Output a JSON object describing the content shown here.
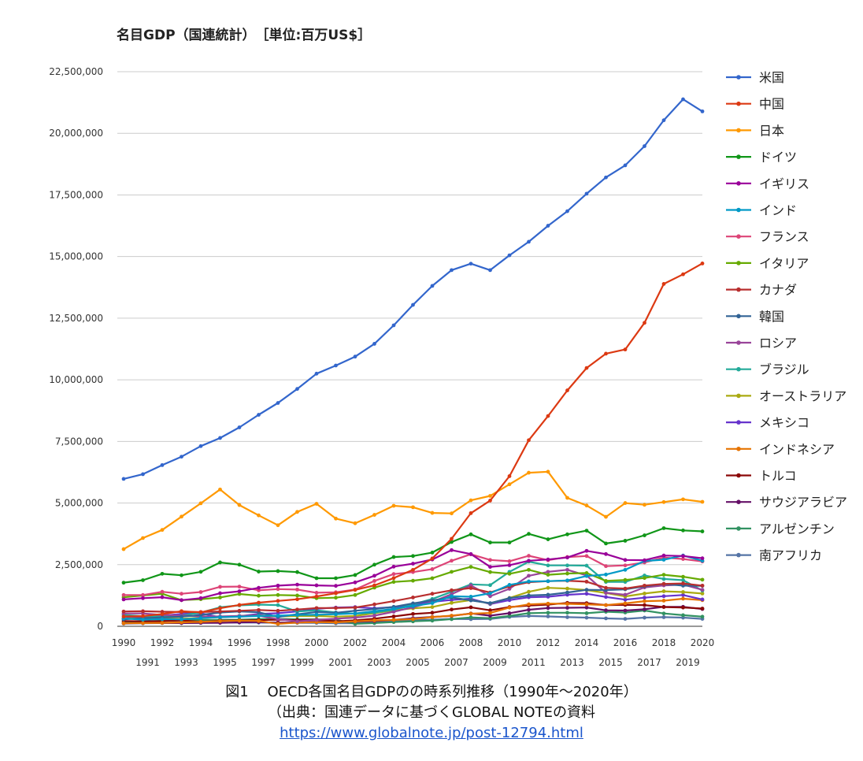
{
  "chart_data": {
    "type": "line",
    "title": "名目GDP（国連統計）　［単位:百万US$］",
    "ylim": [
      0,
      22500000
    ],
    "y_ticks": [
      "0",
      "2,500,000",
      "5,000,000",
      "7,500,000",
      "10,000,000",
      "12,500,000",
      "15,000,000",
      "17,500,000",
      "20,000,000",
      "22,500,000"
    ],
    "y_tick_values": [
      0,
      2500000,
      5000000,
      7500000,
      10000000,
      12500000,
      15000000,
      17500000,
      20000000,
      22500000
    ],
    "x": [
      1990,
      1991,
      1992,
      1993,
      1994,
      1995,
      1996,
      1997,
      1998,
      1999,
      2000,
      2001,
      2002,
      2003,
      2004,
      2005,
      2006,
      2007,
      2008,
      2009,
      2010,
      2011,
      2012,
      2013,
      2014,
      2015,
      2016,
      2017,
      2018,
      2019,
      2020
    ],
    "x_tick_labels": [
      "1990",
      "1991",
      "1992",
      "1993",
      "1994",
      "1995",
      "1996",
      "1997",
      "1998",
      "1999",
      "2000",
      "2001",
      "2002",
      "2003",
      "2004",
      "2005",
      "2006",
      "2007",
      "2008",
      "2009",
      "2010",
      "2011",
      "2012",
      "2013",
      "2014",
      "2015",
      "2016",
      "2017",
      "2018",
      "2019",
      "2020"
    ],
    "grid": true,
    "legend_position": "right",
    "series": [
      {
        "name": "米国",
        "color": "#3366cc",
        "values": [
          5980000,
          6170000,
          6540000,
          6880000,
          7310000,
          7640000,
          8070000,
          8580000,
          9060000,
          9630000,
          10250000,
          10580000,
          10940000,
          11460000,
          12210000,
          13040000,
          13810000,
          14450000,
          14710000,
          14450000,
          15050000,
          15600000,
          16250000,
          16840000,
          17550000,
          18210000,
          18700000,
          19480000,
          20530000,
          21380000,
          20890000
        ]
      },
      {
        "name": "中国",
        "color": "#dc3912",
        "values": [
          395000,
          415000,
          495000,
          615000,
          565000,
          735000,
          865000,
          960000,
          1030000,
          1095000,
          1210000,
          1340000,
          1475000,
          1660000,
          1955000,
          2290000,
          2750000,
          3550000,
          4590000,
          5100000,
          6090000,
          7550000,
          8530000,
          9570000,
          10480000,
          11060000,
          11230000,
          12310000,
          13890000,
          14280000,
          14720000
        ]
      },
      {
        "name": "日本",
        "color": "#ff9900",
        "values": [
          3130000,
          3580000,
          3910000,
          4450000,
          4990000,
          5550000,
          4920000,
          4500000,
          4100000,
          4640000,
          4970000,
          4370000,
          4180000,
          4520000,
          4890000,
          4830000,
          4600000,
          4580000,
          5110000,
          5290000,
          5760000,
          6230000,
          6270000,
          5210000,
          4900000,
          4440000,
          5000000,
          4930000,
          5040000,
          5150000,
          5050000
        ]
      },
      {
        "name": "ドイツ",
        "color": "#109618",
        "values": [
          1770000,
          1870000,
          2130000,
          2070000,
          2210000,
          2590000,
          2500000,
          2220000,
          2240000,
          2200000,
          1950000,
          1950000,
          2080000,
          2500000,
          2810000,
          2850000,
          2990000,
          3420000,
          3730000,
          3400000,
          3400000,
          3750000,
          3530000,
          3730000,
          3880000,
          3360000,
          3470000,
          3690000,
          3980000,
          3890000,
          3850000
        ]
      },
      {
        "name": "イギリス",
        "color": "#990099",
        "values": [
          1090000,
          1140000,
          1180000,
          1060000,
          1140000,
          1340000,
          1420000,
          1560000,
          1650000,
          1690000,
          1660000,
          1640000,
          1780000,
          2050000,
          2420000,
          2540000,
          2710000,
          3090000,
          2930000,
          2410000,
          2480000,
          2660000,
          2710000,
          2790000,
          3060000,
          2930000,
          2690000,
          2680000,
          2870000,
          2850000,
          2760000
        ]
      },
      {
        "name": "インド",
        "color": "#0099c6",
        "values": [
          320000,
          270000,
          290000,
          280000,
          330000,
          370000,
          390000,
          420000,
          430000,
          460000,
          470000,
          490000,
          520000,
          610000,
          710000,
          820000,
          940000,
          1220000,
          1200000,
          1340000,
          1680000,
          1820000,
          1830000,
          1860000,
          2040000,
          2100000,
          2290000,
          2650000,
          2700000,
          2870000,
          2660000
        ]
      },
      {
        "name": "フランス",
        "color": "#dd4477",
        "values": [
          1270000,
          1270000,
          1400000,
          1320000,
          1390000,
          1600000,
          1610000,
          1460000,
          1510000,
          1490000,
          1360000,
          1380000,
          1490000,
          1840000,
          2120000,
          2200000,
          2320000,
          2660000,
          2920000,
          2690000,
          2640000,
          2860000,
          2680000,
          2810000,
          2850000,
          2440000,
          2470000,
          2590000,
          2790000,
          2730000,
          2630000
        ]
      },
      {
        "name": "イタリア",
        "color": "#66aa00",
        "values": [
          1180000,
          1250000,
          1320000,
          1060000,
          1100000,
          1170000,
          1310000,
          1240000,
          1270000,
          1250000,
          1140000,
          1160000,
          1270000,
          1570000,
          1800000,
          1850000,
          1950000,
          2210000,
          2410000,
          2200000,
          2130000,
          2290000,
          2090000,
          2140000,
          2160000,
          1840000,
          1880000,
          1960000,
          2090000,
          2010000,
          1890000
        ]
      },
      {
        "name": "カナダ",
        "color": "#b82e2e",
        "values": [
          600000,
          610000,
          590000,
          580000,
          580000,
          600000,
          630000,
          660000,
          630000,
          680000,
          740000,
          740000,
          760000,
          890000,
          1020000,
          1170000,
          1320000,
          1460000,
          1550000,
          1370000,
          1620000,
          1790000,
          1830000,
          1850000,
          1810000,
          1560000,
          1530000,
          1650000,
          1720000,
          1740000,
          1650000
        ]
      },
      {
        "name": "韓国",
        "color": "#316395",
        "values": [
          280000,
          330000,
          360000,
          390000,
          460000,
          560000,
          600000,
          570000,
          380000,
          490000,
          580000,
          550000,
          630000,
          700000,
          790000,
          930000,
          1050000,
          1170000,
          1050000,
          940000,
          1140000,
          1250000,
          1280000,
          1370000,
          1480000,
          1470000,
          1500000,
          1620000,
          1720000,
          1650000,
          1640000
        ]
      },
      {
        "name": "ロシア",
        "color": "#994499",
        "values": [
          520000,
          520000,
          460000,
          440000,
          400000,
          400000,
          420000,
          430000,
          290000,
          200000,
          260000,
          310000,
          350000,
          430000,
          590000,
          770000,
          990000,
          1300000,
          1660000,
          1220000,
          1520000,
          2050000,
          2210000,
          2290000,
          2060000,
          1360000,
          1280000,
          1580000,
          1660000,
          1690000,
          1480000
        ]
      },
      {
        "name": "ブラジル",
        "color": "#22aa99",
        "values": [
          460000,
          410000,
          390000,
          440000,
          560000,
          770000,
          850000,
          880000,
          860000,
          600000,
          650000,
          560000,
          510000,
          560000,
          670000,
          890000,
          1110000,
          1400000,
          1700000,
          1670000,
          2210000,
          2620000,
          2470000,
          2470000,
          2460000,
          1800000,
          1800000,
          2060000,
          1920000,
          1870000,
          1450000
        ]
      },
      {
        "name": "オーストラリア",
        "color": "#aaaa11",
        "values": [
          310000,
          330000,
          320000,
          310000,
          340000,
          370000,
          420000,
          440000,
          400000,
          420000,
          420000,
          390000,
          420000,
          530000,
          650000,
          730000,
          780000,
          950000,
          1060000,
          930000,
          1150000,
          1400000,
          1560000,
          1530000,
          1470000,
          1350000,
          1210000,
          1330000,
          1420000,
          1390000,
          1330000
        ]
      },
      {
        "name": "メキシコ",
        "color": "#6633cc",
        "values": [
          320000,
          380000,
          430000,
          500000,
          530000,
          360000,
          410000,
          500000,
          530000,
          600000,
          710000,
          760000,
          780000,
          730000,
          780000,
          880000,
          990000,
          1070000,
          1120000,
          900000,
          1060000,
          1180000,
          1200000,
          1280000,
          1320000,
          1190000,
          1080000,
          1160000,
          1220000,
          1270000,
          1090000
        ]
      },
      {
        "name": "インドネシア",
        "color": "#e67300",
        "values": [
          120000,
          130000,
          140000,
          160000,
          180000,
          210000,
          230000,
          220000,
          100000,
          150000,
          170000,
          160000,
          200000,
          240000,
          260000,
          290000,
          370000,
          430000,
          510000,
          540000,
          760000,
          890000,
          920000,
          910000,
          890000,
          860000,
          930000,
          1020000,
          1040000,
          1120000,
          1060000
        ]
      },
      {
        "name": "トルコ",
        "color": "#8b0707",
        "values": [
          210000,
          200000,
          210000,
          240000,
          180000,
          230000,
          240000,
          250000,
          270000,
          250000,
          270000,
          200000,
          240000,
          310000,
          400000,
          500000,
          550000,
          680000,
          770000,
          650000,
          780000,
          840000,
          880000,
          950000,
          940000,
          860000,
          870000,
          860000,
          780000,
          760000,
          720000
        ]
      },
      {
        "name": "サウジアラビア",
        "color": "#651067",
        "values": [
          120000,
          130000,
          140000,
          130000,
          140000,
          140000,
          160000,
          170000,
          150000,
          160000,
          190000,
          180000,
          190000,
          210000,
          260000,
          330000,
          380000,
          420000,
          520000,
          430000,
          530000,
          670000,
          740000,
          750000,
          760000,
          650000,
          640000,
          690000,
          790000,
          790000,
          700000
        ]
      },
      {
        "name": "アルゼンチン",
        "color": "#329262",
        "values": [
          140000,
          190000,
          230000,
          240000,
          260000,
          260000,
          270000,
          290000,
          300000,
          280000,
          280000,
          270000,
          100000,
          130000,
          170000,
          200000,
          230000,
          290000,
          360000,
          330000,
          420000,
          530000,
          550000,
          550000,
          530000,
          590000,
          560000,
          640000,
          520000,
          450000,
          390000
        ]
      },
      {
        "name": "南アフリカ",
        "color": "#5574a6",
        "values": [
          110000,
          120000,
          130000,
          130000,
          140000,
          150000,
          150000,
          150000,
          140000,
          140000,
          140000,
          120000,
          120000,
          180000,
          230000,
          260000,
          270000,
          300000,
          290000,
          300000,
          380000,
          420000,
          400000,
          370000,
          350000,
          320000,
          300000,
          350000,
          370000,
          350000,
          300000
        ]
      }
    ]
  },
  "caption": {
    "line1": "図1　 OECD各国名目GDPのの時系列推移（1990年～2020年）",
    "line2": "（出典：国連データに基づくGLOBAL NOTEの資料",
    "link": "https://www.globalnote.jp/post-12794.html"
  }
}
